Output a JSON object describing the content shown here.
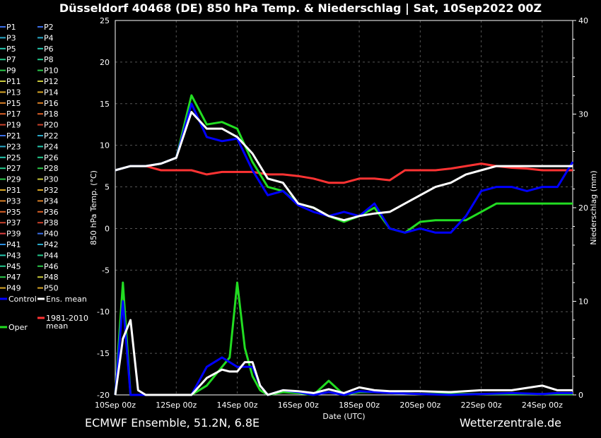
{
  "title": "Düsseldorf 40468 (DE)  850 hPa Temp. & Niederschlag | Sat, 10Sep2022 00Z",
  "footer_left": "ECMWF Ensemble, 51.2N, 6.8E",
  "footer_right": "Wetterzentrale.de",
  "colors": {
    "background": "#000000",
    "control": "#0000ff",
    "mean": "#ffffff",
    "climate": "#ff3333",
    "oper": "#22dd22"
  },
  "chart_data": {
    "type": "line",
    "xlabel": "Date (UTC)",
    "ylabel_left": "850 hPa Temp. (°C)",
    "ylabel_right": "Niederschlag (mm)",
    "ylim_left": [
      -20,
      25
    ],
    "ylim_right": [
      0,
      40
    ],
    "yticks_left": [
      25,
      20,
      15,
      10,
      5,
      0,
      -5,
      -10,
      -15,
      -20
    ],
    "yticks_right": [
      40,
      30,
      20,
      10,
      0
    ],
    "x_range_hours": [
      0,
      360
    ],
    "xticks": [
      {
        "h": 0,
        "label": "10Sep 00z"
      },
      {
        "h": 48,
        "label": "12Sep 00z"
      },
      {
        "h": 96,
        "label": "14Sep 00z"
      },
      {
        "h": 144,
        "label": "16Sep 00z"
      },
      {
        "h": 192,
        "label": "18Sep 00z"
      },
      {
        "h": 240,
        "label": "20Sep 00z"
      },
      {
        "h": 288,
        "label": "22Sep 00z"
      },
      {
        "h": 336,
        "label": "24Sep 00z"
      }
    ],
    "grid": true,
    "legend_position": "left",
    "legend_members": [
      "P1",
      "P2",
      "P3",
      "P4",
      "P5",
      "P6",
      "P7",
      "P8",
      "P9",
      "P10",
      "P11",
      "P12",
      "P13",
      "P14",
      "P15",
      "P16",
      "P17",
      "P18",
      "P19",
      "P20",
      "P21",
      "P22",
      "P23",
      "P24",
      "P25",
      "P26",
      "P27",
      "P28",
      "P29",
      "P30",
      "P31",
      "P32",
      "P33",
      "P34",
      "P35",
      "P36",
      "P37",
      "P38",
      "P39",
      "P40",
      "P41",
      "P42",
      "P43",
      "P44",
      "P45",
      "P46",
      "P47",
      "P48",
      "P49",
      "P50"
    ],
    "legend_member_colors": [
      "#3a6ee8",
      "#3a6ee8",
      "#2aa9c9",
      "#2aa9c9",
      "#25c9b0",
      "#25c9b0",
      "#23c98c",
      "#23c98c",
      "#2ac84a",
      "#2ac84a",
      "#c8c83a",
      "#c8c83a",
      "#d9a726",
      "#d9a726",
      "#d97f26",
      "#d97f26",
      "#d95f26",
      "#d95f26",
      "#c9402a",
      "#c9402a",
      "#3a6ee8",
      "#2aa9c9",
      "#2aa9c9",
      "#25c9b0",
      "#25c9b0",
      "#23c98c",
      "#23c98c",
      "#2ac84a",
      "#2ac84a",
      "#c8c83a",
      "#d9a726",
      "#d9a726",
      "#d97f26",
      "#d97f26",
      "#d95f26",
      "#d95f26",
      "#c9402a",
      "#c9402a",
      "#e04040",
      "#3a6ee8",
      "#2a8ee0",
      "#2aa9c9",
      "#25c9b0",
      "#23c98c",
      "#23c98c",
      "#2ac84a",
      "#2ac84a",
      "#c8c83a",
      "#d9a726",
      "#d9a726"
    ],
    "legend_special": [
      {
        "label": "Control",
        "color": "#0000ff"
      },
      {
        "label": "Ens. mean",
        "color": "#ffffff"
      },
      {
        "label": "1981-2010 mean",
        "color": "#ff3333"
      },
      {
        "label": "Oper",
        "color": "#22dd22"
      }
    ],
    "series_temp": {
      "x_hours": [
        0,
        12,
        24,
        36,
        48,
        60,
        72,
        84,
        96,
        108,
        120,
        132,
        144,
        156,
        168,
        180,
        192,
        204,
        216,
        228,
        240,
        252,
        264,
        276,
        288,
        300,
        312,
        324,
        336,
        348,
        360
      ],
      "control": [
        7,
        7.5,
        7.5,
        7.8,
        8.5,
        15,
        11,
        10.5,
        10.8,
        7,
        4,
        4.5,
        2.8,
        2,
        1.5,
        2,
        1.5,
        3,
        0,
        -0.5,
        0,
        -0.5,
        -0.5,
        1.5,
        4.5,
        5,
        5,
        4.5,
        5,
        5,
        8
      ],
      "ens_mean": [
        7,
        7.5,
        7.5,
        7.8,
        8.5,
        14,
        12,
        12,
        11,
        9,
        6,
        5.5,
        3,
        2.5,
        1.5,
        1,
        1.5,
        1.8,
        2,
        3,
        4,
        5,
        5.5,
        6.5,
        7,
        7.5,
        7.5,
        7.5,
        7.5,
        7.5,
        7.5
      ],
      "climate_mean": [
        7,
        7.5,
        7.5,
        7,
        7,
        7,
        6.5,
        6.8,
        6.8,
        6.8,
        6.5,
        6.5,
        6.3,
        6,
        5.5,
        5.5,
        6,
        6,
        5.8,
        7,
        7,
        7,
        7.2,
        7.5,
        7.8,
        7.5,
        7.3,
        7.2,
        7,
        7,
        7
      ],
      "oper": [
        7,
        7.5,
        7.5,
        7.8,
        8.5,
        16,
        12.5,
        12.8,
        12,
        8,
        5,
        4.5,
        3,
        2.5,
        1.5,
        0.8,
        1.5,
        2.5,
        0,
        -0.5,
        0.8,
        1,
        1,
        1,
        2,
        3,
        3,
        3,
        3,
        3,
        3
      ]
    },
    "series_precip": {
      "x_hours": [
        0,
        6,
        12,
        18,
        24,
        36,
        48,
        60,
        72,
        84,
        90,
        96,
        102,
        108,
        114,
        120,
        132,
        144,
        156,
        168,
        180,
        192,
        204,
        216,
        240,
        264,
        288,
        312,
        336,
        348,
        360
      ],
      "control": [
        0,
        10,
        0,
        0,
        0,
        0,
        0,
        0,
        3,
        4,
        3.5,
        3,
        3,
        3,
        1,
        0,
        0.5,
        0.3,
        0,
        0.3,
        0,
        0.4,
        0.3,
        0.2,
        0.1,
        0,
        0.1,
        0.2,
        0.1,
        0.2,
        0.2
      ],
      "ens_mean": [
        0,
        6,
        8,
        0.5,
        0,
        0,
        0,
        0,
        1.8,
        2.7,
        2.5,
        2.5,
        3.5,
        3.5,
        1,
        0,
        0.5,
        0.4,
        0.2,
        0.6,
        0.2,
        0.8,
        0.5,
        0.4,
        0.4,
        0.3,
        0.5,
        0.5,
        1,
        0.5,
        0.5
      ],
      "oper": [
        0,
        12,
        0,
        0,
        0,
        0,
        0,
        0,
        1,
        3,
        4,
        12,
        5,
        2,
        0.5,
        0,
        0.3,
        0.2,
        0,
        1.5,
        0,
        0.3,
        0.3,
        0.2,
        0.1,
        0.1,
        0.1,
        0.1,
        0.1,
        0.1,
        0.1
      ]
    }
  }
}
